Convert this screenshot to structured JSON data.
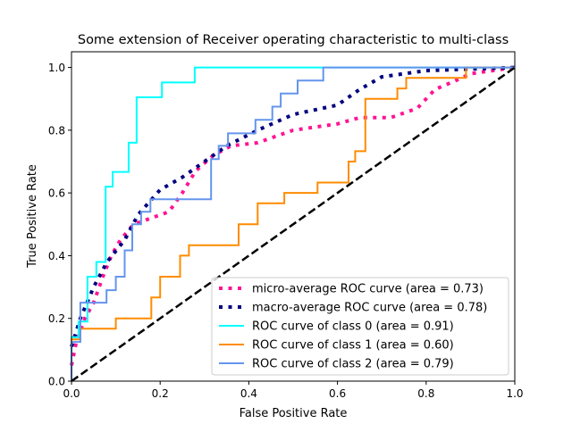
{
  "chart_data": {
    "type": "line",
    "title": "Some extension of Receiver operating characteristic to multi-class",
    "xlabel": "False Positive Rate",
    "ylabel": "True Positive Rate",
    "xlim": [
      0,
      1.0
    ],
    "ylim": [
      0,
      1.05
    ],
    "xticks": [
      "0.0",
      "0.2",
      "0.4",
      "0.6",
      "0.8",
      "1.0"
    ],
    "yticks": [
      "0.0",
      "0.2",
      "0.4",
      "0.6",
      "0.8",
      "1.0"
    ],
    "grid": false,
    "legend_position": "lower-right",
    "series": [
      {
        "name": "micro-average ROC curve (area = 0.73)",
        "color": "#ff1493",
        "style": "dotted",
        "x": [
          0,
          0.01,
          0.03,
          0.05,
          0.07,
          0.09,
          0.11,
          0.14,
          0.18,
          0.22,
          0.25,
          0.28,
          0.32,
          0.36,
          0.42,
          0.5,
          0.6,
          0.65,
          0.72,
          0.78,
          0.82,
          0.87,
          0.9,
          1.0
        ],
        "y": [
          0.05,
          0.12,
          0.2,
          0.25,
          0.33,
          0.4,
          0.45,
          0.5,
          0.52,
          0.54,
          0.6,
          0.67,
          0.72,
          0.75,
          0.76,
          0.8,
          0.82,
          0.84,
          0.84,
          0.87,
          0.93,
          0.96,
          0.98,
          1.0
        ]
      },
      {
        "name": "macro-average ROC curve (area = 0.78)",
        "color": "#000080",
        "style": "dotted",
        "x": [
          0,
          0.02,
          0.05,
          0.08,
          0.12,
          0.15,
          0.2,
          0.25,
          0.3,
          0.35,
          0.42,
          0.5,
          0.6,
          0.65,
          0.7,
          0.8,
          1.0
        ],
        "y": [
          0.11,
          0.2,
          0.3,
          0.38,
          0.45,
          0.53,
          0.61,
          0.65,
          0.7,
          0.75,
          0.8,
          0.85,
          0.88,
          0.93,
          0.97,
          0.99,
          1.0
        ]
      },
      {
        "name": "ROC curve of class 0 (area = 0.91)",
        "color": "#00ffff",
        "style": "step",
        "x": [
          0,
          0,
          0.016,
          0.016,
          0.036,
          0.036,
          0.056,
          0.056,
          0.077,
          0.077,
          0.093,
          0.093,
          0.129,
          0.129,
          0.147,
          0.147,
          0.204,
          0.204,
          0.278,
          0.278,
          1.0
        ],
        "y": [
          0,
          0.14,
          0.14,
          0.19,
          0.19,
          0.333,
          0.333,
          0.38,
          0.38,
          0.62,
          0.62,
          0.667,
          0.667,
          0.76,
          0.76,
          0.905,
          0.905,
          0.952,
          0.952,
          1.0,
          1.0
        ]
      },
      {
        "name": "ROC curve of class 1 (area = 0.60)",
        "color": "#ff8c00",
        "style": "step",
        "x": [
          0,
          0,
          0.02,
          0.02,
          0.1,
          0.1,
          0.18,
          0.18,
          0.2,
          0.2,
          0.245,
          0.245,
          0.265,
          0.265,
          0.377,
          0.377,
          0.42,
          0.42,
          0.48,
          0.48,
          0.555,
          0.555,
          0.625,
          0.625,
          0.64,
          0.64,
          0.663,
          0.663,
          0.735,
          0.735,
          0.755,
          0.755,
          0.89,
          0.89,
          1.0
        ],
        "y": [
          0,
          0.133,
          0.133,
          0.167,
          0.167,
          0.2,
          0.2,
          0.267,
          0.267,
          0.333,
          0.333,
          0.4,
          0.4,
          0.433,
          0.433,
          0.5,
          0.5,
          0.567,
          0.567,
          0.6,
          0.6,
          0.633,
          0.633,
          0.7,
          0.7,
          0.733,
          0.733,
          0.9,
          0.9,
          0.933,
          0.933,
          0.967,
          0.967,
          1.0,
          1.0
        ]
      },
      {
        "name": "ROC curve of class 2 (area = 0.79)",
        "color": "#6495ed",
        "style": "step",
        "x": [
          0,
          0,
          0.02,
          0.02,
          0.079,
          0.079,
          0.1,
          0.1,
          0.12,
          0.12,
          0.137,
          0.137,
          0.157,
          0.157,
          0.178,
          0.178,
          0.315,
          0.315,
          0.332,
          0.332,
          0.353,
          0.353,
          0.415,
          0.415,
          0.453,
          0.453,
          0.472,
          0.472,
          0.51,
          0.51,
          0.568,
          0.568,
          1.0
        ],
        "y": [
          0,
          0.125,
          0.125,
          0.25,
          0.25,
          0.29,
          0.29,
          0.333,
          0.333,
          0.417,
          0.417,
          0.5,
          0.5,
          0.54,
          0.54,
          0.58,
          0.58,
          0.708,
          0.708,
          0.75,
          0.75,
          0.79,
          0.79,
          0.833,
          0.833,
          0.875,
          0.875,
          0.917,
          0.917,
          0.958,
          0.958,
          1.0,
          1.0
        ]
      },
      {
        "name": "",
        "color": "#000000",
        "style": "dashed",
        "x": [
          0,
          1
        ],
        "y": [
          0,
          1
        ]
      }
    ]
  }
}
